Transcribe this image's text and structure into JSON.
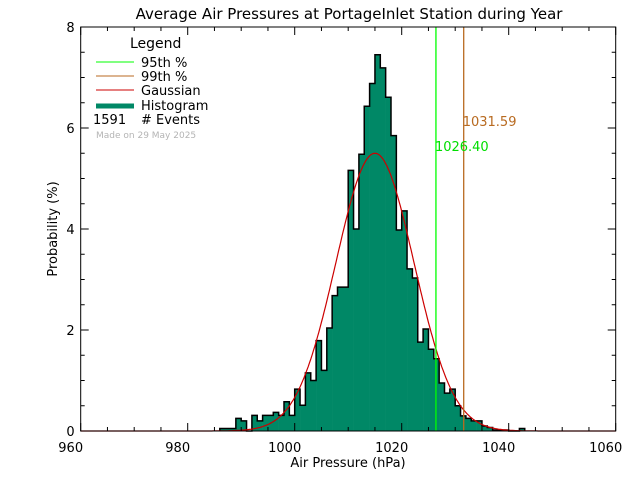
{
  "chart_data": {
    "type": "bar",
    "title": "Average Air Pressures at PortageInlet Station during Year",
    "xlabel": "Air Pressure (hPa)",
    "ylabel": "Probability (%)",
    "xlim": [
      960,
      1060
    ],
    "ylim": [
      0,
      8
    ],
    "xticks": [
      960,
      980,
      1000,
      1020,
      1040,
      1060
    ],
    "yticks": [
      0,
      2,
      4,
      6,
      8
    ],
    "grid": false,
    "legend_position": "top-left",
    "bin_width": 1,
    "histogram": {
      "bin_start": [
        986,
        987,
        988,
        989,
        990,
        991,
        992,
        993,
        994,
        995,
        996,
        997,
        998,
        999,
        1000,
        1001,
        1002,
        1003,
        1004,
        1005,
        1006,
        1007,
        1008,
        1009,
        1010,
        1011,
        1012,
        1013,
        1014,
        1015,
        1016,
        1017,
        1018,
        1019,
        1020,
        1021,
        1022,
        1023,
        1024,
        1025,
        1026,
        1027,
        1028,
        1029,
        1030,
        1031,
        1032,
        1033,
        1034,
        1035,
        1036,
        1037,
        1038,
        1039,
        1040,
        1041,
        1042
      ],
      "values": [
        0.05,
        0.05,
        0.05,
        0.25,
        0.2,
        0,
        0.31,
        0.2,
        0.31,
        0.31,
        0.37,
        0.31,
        0.58,
        0.31,
        0.83,
        0.51,
        1.15,
        1.0,
        1.79,
        1.2,
        2.04,
        2.68,
        2.85,
        2.85,
        5.16,
        4.0,
        5.48,
        6.43,
        6.88,
        7.45,
        7.19,
        6.61,
        5.85,
        3.98,
        4.36,
        3.21,
        3.03,
        1.76,
        2.02,
        1.62,
        1.43,
        0.95,
        0.75,
        0.83,
        0.5,
        0.3,
        0.25,
        0.2,
        0.2,
        0.1,
        0.07,
        0.02,
        0.02,
        0.02,
        0,
        0,
        0.05
      ]
    },
    "gaussian": {
      "mean": 1015,
      "sigma": 7.3,
      "peak": 5.5
    },
    "percentile_95": {
      "value": 1026.4,
      "label": "1026.40"
    },
    "percentile_99": {
      "value": 1031.59,
      "label": "1031.59"
    },
    "colors": {
      "histogram": "#008866",
      "gaussian": "#cc0000",
      "p95": "#00ff00",
      "p99": "#b86a20",
      "made_on": "#b4b4b4"
    },
    "legend": {
      "title": "Legend",
      "items": [
        "95th %",
        "99th %",
        "Gaussian",
        "Histogram"
      ],
      "events_count": "1591",
      "events_label": "# Events"
    },
    "made_on": "Made on 29 May 2025"
  }
}
